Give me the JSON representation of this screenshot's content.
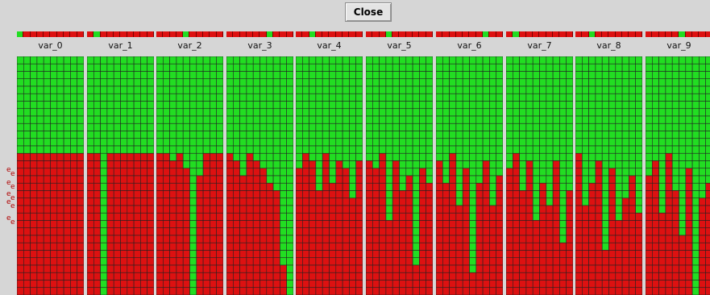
{
  "toolbar": {
    "close_label": "Close"
  },
  "colors": {
    "selected": "#22dd22",
    "unselected": "#dd1111",
    "grid_line": "#222222",
    "panel_bg": "#d6d6d6"
  },
  "side_markers": [
    "e",
    "e",
    "e",
    "e",
    "e",
    "e",
    "e",
    "e",
    "e",
    "e"
  ],
  "grid": {
    "columns": 10,
    "rows": 32
  },
  "panels": [
    {
      "label": "var_0",
      "selector_index": 0,
      "red_start": [
        13,
        13,
        13,
        13,
        13,
        13,
        13,
        13,
        13,
        13
      ]
    },
    {
      "label": "var_1",
      "selector_index": 1,
      "red_start": [
        13,
        13,
        32,
        13,
        13,
        13,
        13,
        13,
        13,
        13
      ]
    },
    {
      "label": "var_2",
      "selector_index": 4,
      "red_start": [
        13,
        13,
        14,
        13,
        15,
        32,
        16,
        13,
        13,
        13
      ]
    },
    {
      "label": "var_3",
      "selector_index": 6,
      "red_start": [
        13,
        14,
        16,
        13,
        14,
        15,
        17,
        18,
        28,
        32
      ]
    },
    {
      "label": "var_4",
      "selector_index": 2,
      "red_start": [
        15,
        13,
        14,
        18,
        13,
        17,
        14,
        15,
        19,
        14
      ]
    },
    {
      "label": "var_5",
      "selector_index": 3,
      "red_start": [
        14,
        15,
        13,
        22,
        14,
        18,
        16,
        28,
        15,
        17
      ]
    },
    {
      "label": "var_6",
      "selector_index": 7,
      "red_start": [
        14,
        17,
        13,
        20,
        15,
        29,
        17,
        14,
        20,
        16
      ]
    },
    {
      "label": "var_7",
      "selector_index": 1,
      "red_start": [
        15,
        13,
        18,
        14,
        22,
        17,
        20,
        14,
        25,
        18
      ]
    },
    {
      "label": "var_8",
      "selector_index": 2,
      "red_start": [
        13,
        20,
        17,
        14,
        26,
        15,
        22,
        19,
        16,
        21
      ]
    },
    {
      "label": "var_9",
      "selector_index": 5,
      "red_start": [
        16,
        14,
        21,
        13,
        18,
        24,
        15,
        32,
        19,
        17
      ]
    }
  ]
}
